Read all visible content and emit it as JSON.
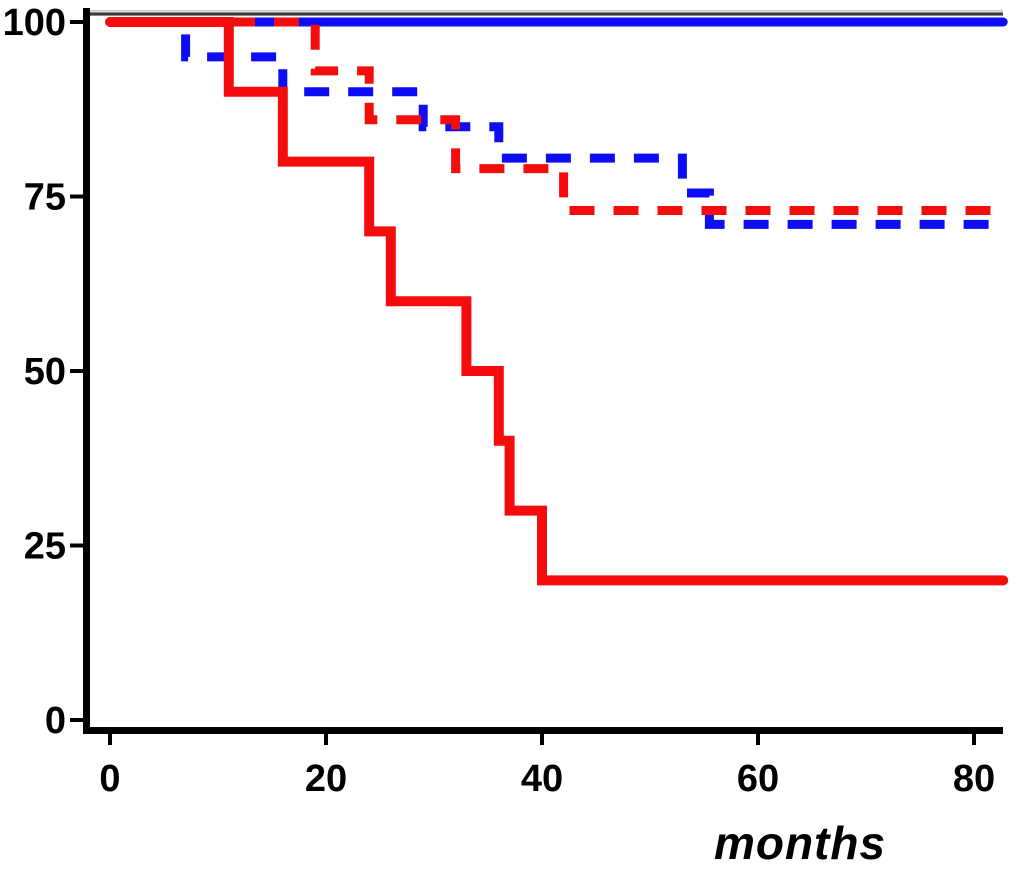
{
  "chart_data": {
    "type": "line",
    "subtype": "kaplan-meier-step",
    "title": "",
    "xlabel": "months",
    "ylabel": "",
    "xlim": [
      0,
      83
    ],
    "ylim": [
      0,
      100
    ],
    "xticks": [
      0,
      20,
      40,
      60,
      80
    ],
    "yticks": [
      100,
      75,
      50,
      25,
      0
    ],
    "grid": false,
    "legend": null,
    "colors": {
      "axis": "#000000",
      "blue_series": "#0d0df5",
      "red_series": "#f50d0d",
      "top_border": "#3d3d3d"
    },
    "series": [
      {
        "name": "solid-blue",
        "color": "#0d0df5",
        "style": "solid",
        "width": 9,
        "points": [
          [
            0,
            100
          ],
          [
            82.7,
            100
          ]
        ]
      },
      {
        "name": "dashed-blue",
        "color": "#0d0df5",
        "style": "dashed",
        "width": 9,
        "dash_offset": 0,
        "points": [
          [
            0,
            100
          ],
          [
            7,
            100
          ],
          [
            7,
            95
          ],
          [
            16,
            95
          ],
          [
            16,
            90
          ],
          [
            29,
            90
          ],
          [
            29,
            85
          ],
          [
            36,
            85
          ],
          [
            36,
            80.5
          ],
          [
            53,
            80.5
          ],
          [
            53,
            75.5
          ],
          [
            55.5,
            75.5
          ],
          [
            55.5,
            71
          ],
          [
            82.7,
            71
          ]
        ]
      },
      {
        "name": "dashed-red",
        "color": "#f50d0d",
        "style": "dashed",
        "width": 9,
        "dash_offset": 12,
        "points": [
          [
            0,
            100
          ],
          [
            19,
            100
          ],
          [
            19,
            93
          ],
          [
            24,
            93
          ],
          [
            24,
            86
          ],
          [
            32,
            86
          ],
          [
            32,
            79
          ],
          [
            42,
            79
          ],
          [
            42,
            73
          ],
          [
            82.7,
            73
          ]
        ]
      },
      {
        "name": "solid-red",
        "color": "#f50d0d",
        "style": "solid",
        "width": 10,
        "points": [
          [
            0,
            100
          ],
          [
            11,
            100
          ],
          [
            11,
            90
          ],
          [
            16,
            90
          ],
          [
            16,
            80
          ],
          [
            24,
            80
          ],
          [
            24,
            70
          ],
          [
            26,
            70
          ],
          [
            26,
            60
          ],
          [
            33,
            60
          ],
          [
            33,
            50
          ],
          [
            36,
            50
          ],
          [
            36,
            40
          ],
          [
            37,
            40
          ],
          [
            37,
            30
          ],
          [
            40,
            30
          ],
          [
            40,
            20
          ],
          [
            82.7,
            20
          ]
        ]
      }
    ]
  }
}
